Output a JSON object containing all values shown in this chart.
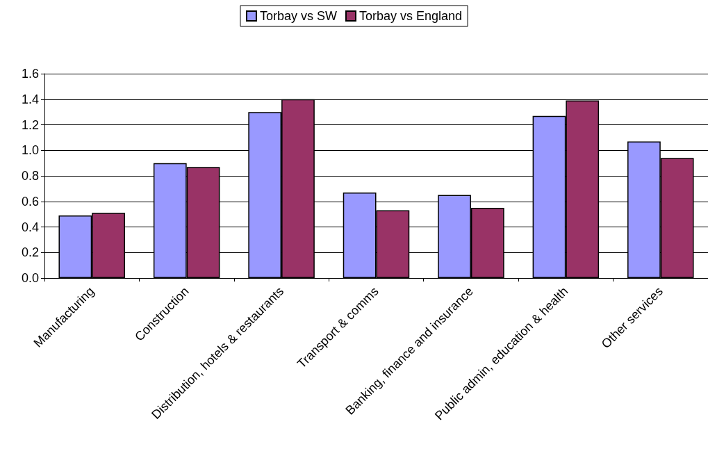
{
  "chart_data": {
    "type": "bar",
    "categories": [
      "Manufacturing",
      "Construction",
      "Distribution, hotels & restaurants",
      "Transport & comms",
      "Banking, finance and insurance",
      "Public admin, education & health",
      "Other services"
    ],
    "series": [
      {
        "name": "Torbay vs SW",
        "color": "#9999ff",
        "values": [
          0.49,
          0.9,
          1.3,
          0.67,
          0.65,
          1.27,
          1.07
        ]
      },
      {
        "name": "Torbay vs England",
        "color": "#993366",
        "values": [
          0.51,
          0.87,
          1.4,
          0.53,
          0.55,
          1.39,
          0.94
        ]
      }
    ],
    "ylim": [
      0,
      1.6
    ],
    "yticks": [
      {
        "value": 0,
        "label": "0.0"
      },
      {
        "value": 0.2,
        "label": "0.2"
      },
      {
        "value": 0.4,
        "label": "0.4"
      },
      {
        "value": 0.6,
        "label": "0.6"
      },
      {
        "value": 0.8,
        "label": "0.8"
      },
      {
        "value": 1,
        "label": "1.0"
      },
      {
        "value": 1.2,
        "label": "1.2"
      },
      {
        "value": 1.4,
        "label": "1.4"
      },
      {
        "value": 1.6,
        "label": "1.6"
      }
    ],
    "grid": "y",
    "legend": "top"
  }
}
